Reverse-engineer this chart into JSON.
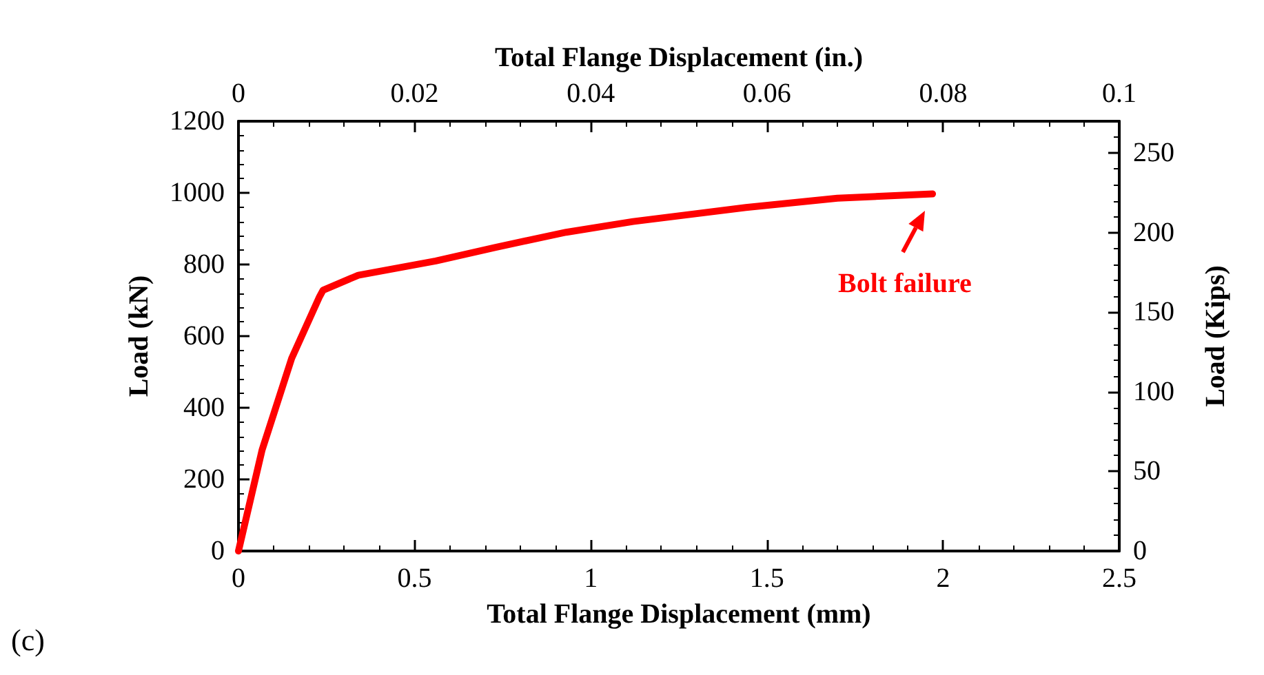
{
  "chart_data": {
    "type": "line",
    "xlabel": "Total Flange Displacement (mm)",
    "ylabel": "Load (kN)",
    "y2label": "Load (Kips)",
    "x2label": "Total Flange Displacement (in.)",
    "series": [
      {
        "color": "#ff0000",
        "x": [
          0,
          0.067,
          0.151,
          0.23,
          0.24,
          0.34,
          0.56,
          0.73,
          0.93,
          1.12,
          1.44,
          1.7,
          1.97
        ],
        "values": [
          0,
          282,
          538,
          710,
          728,
          770,
          810,
          848,
          890,
          920,
          959,
          985,
          997
        ]
      }
    ],
    "xlim": [
      0,
      2.5
    ],
    "xticks": [
      0,
      0.5,
      1,
      1.5,
      2,
      2.5
    ],
    "ylim": [
      0,
      1200
    ],
    "yticks": [
      0,
      200,
      400,
      600,
      800,
      1000,
      1200
    ],
    "x2lim": [
      0,
      0.1
    ],
    "x2ticks": [
      0,
      0.02,
      0.04,
      0.06,
      0.08,
      0.1
    ],
    "y2lim": [
      0,
      270
    ],
    "y2ticks": [
      0,
      50,
      100,
      150,
      200,
      250
    ],
    "annotations": [
      {
        "text": "Bolt failure",
        "x": 1.97,
        "y": 997
      },
      "(c)"
    ],
    "marker": "none",
    "line_style": "solid"
  }
}
